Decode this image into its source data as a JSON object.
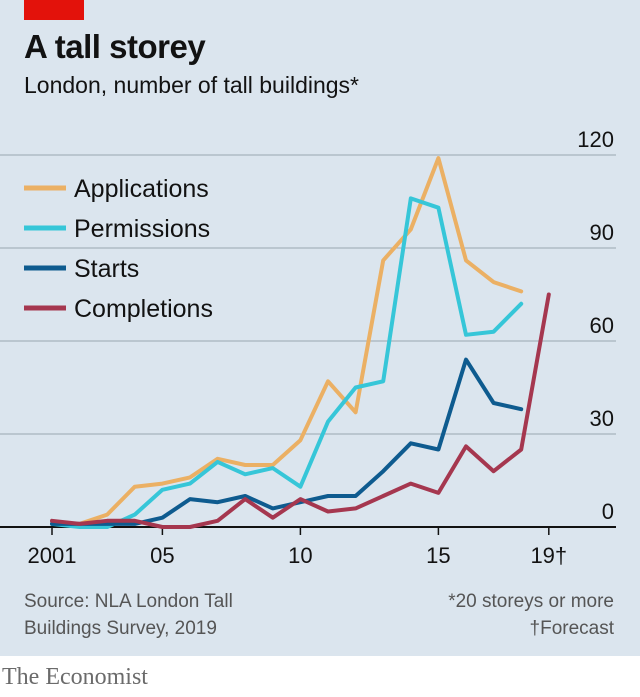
{
  "header": {
    "title": "A tall storey",
    "subtitle": "London, number of tall buildings*"
  },
  "footer": {
    "source_line1": "Source: NLA London Tall",
    "source_line2": "Buildings Survey, 2019",
    "note_line1": "*20 storeys or more",
    "note_line2": "†Forecast",
    "brand": "The Economist"
  },
  "colors": {
    "background": "#dbe5ee",
    "brand_red": "#e3120b",
    "applications": "#ebb064",
    "permissions": "#36c6d8",
    "starts": "#0e5b8f",
    "completions": "#a5374f"
  },
  "chart_data": {
    "type": "line",
    "title": "A tall storey",
    "subtitle": "London, number of tall buildings*",
    "x_ticks": [
      {
        "value": 2001,
        "label": "2001"
      },
      {
        "value": 2005,
        "label": "05"
      },
      {
        "value": 2010,
        "label": "10"
      },
      {
        "value": 2015,
        "label": "15"
      },
      {
        "value": 2019,
        "label": "19†"
      }
    ],
    "xlim": [
      2000.5,
      2020.5
    ],
    "ylim": [
      0,
      120
    ],
    "y_ticks": [
      0,
      30,
      60,
      90,
      120
    ],
    "grid": "horizontal",
    "y_axis_position": "right",
    "legend_position": "top-left",
    "series": [
      {
        "name": "Applications",
        "color": "#ebb064",
        "x": [
          2001,
          2002,
          2003,
          2004,
          2005,
          2006,
          2007,
          2008,
          2009,
          2010,
          2011,
          2012,
          2013,
          2014,
          2015,
          2016,
          2017,
          2018
        ],
        "values": [
          1,
          1,
          4,
          13,
          14,
          16,
          22,
          20,
          20,
          28,
          47,
          37,
          86,
          96,
          119,
          86,
          79,
          76
        ]
      },
      {
        "name": "Permissions",
        "color": "#36c6d8",
        "x": [
          2001,
          2002,
          2003,
          2004,
          2005,
          2006,
          2007,
          2008,
          2009,
          2010,
          2011,
          2012,
          2013,
          2014,
          2015,
          2016,
          2017,
          2018
        ],
        "values": [
          1,
          0,
          0,
          4,
          12,
          14,
          21,
          17,
          19,
          13,
          34,
          45,
          47,
          106,
          103,
          62,
          63,
          72
        ]
      },
      {
        "name": "Starts",
        "color": "#0e5b8f",
        "x": [
          2001,
          2002,
          2003,
          2004,
          2005,
          2006,
          2007,
          2008,
          2009,
          2010,
          2011,
          2012,
          2013,
          2014,
          2015,
          2016,
          2017,
          2018
        ],
        "values": [
          1,
          1,
          1,
          1,
          3,
          9,
          8,
          10,
          6,
          8,
          10,
          10,
          18,
          27,
          25,
          54,
          40,
          38
        ]
      },
      {
        "name": "Completions",
        "color": "#a5374f",
        "x": [
          2001,
          2002,
          2003,
          2004,
          2005,
          2006,
          2007,
          2008,
          2009,
          2010,
          2011,
          2012,
          2013,
          2014,
          2015,
          2016,
          2017,
          2018,
          2019
        ],
        "values": [
          2,
          1,
          2,
          2,
          0,
          0,
          2,
          9,
          3,
          9,
          5,
          6,
          10,
          14,
          11,
          26,
          18,
          25,
          75
        ]
      }
    ]
  }
}
